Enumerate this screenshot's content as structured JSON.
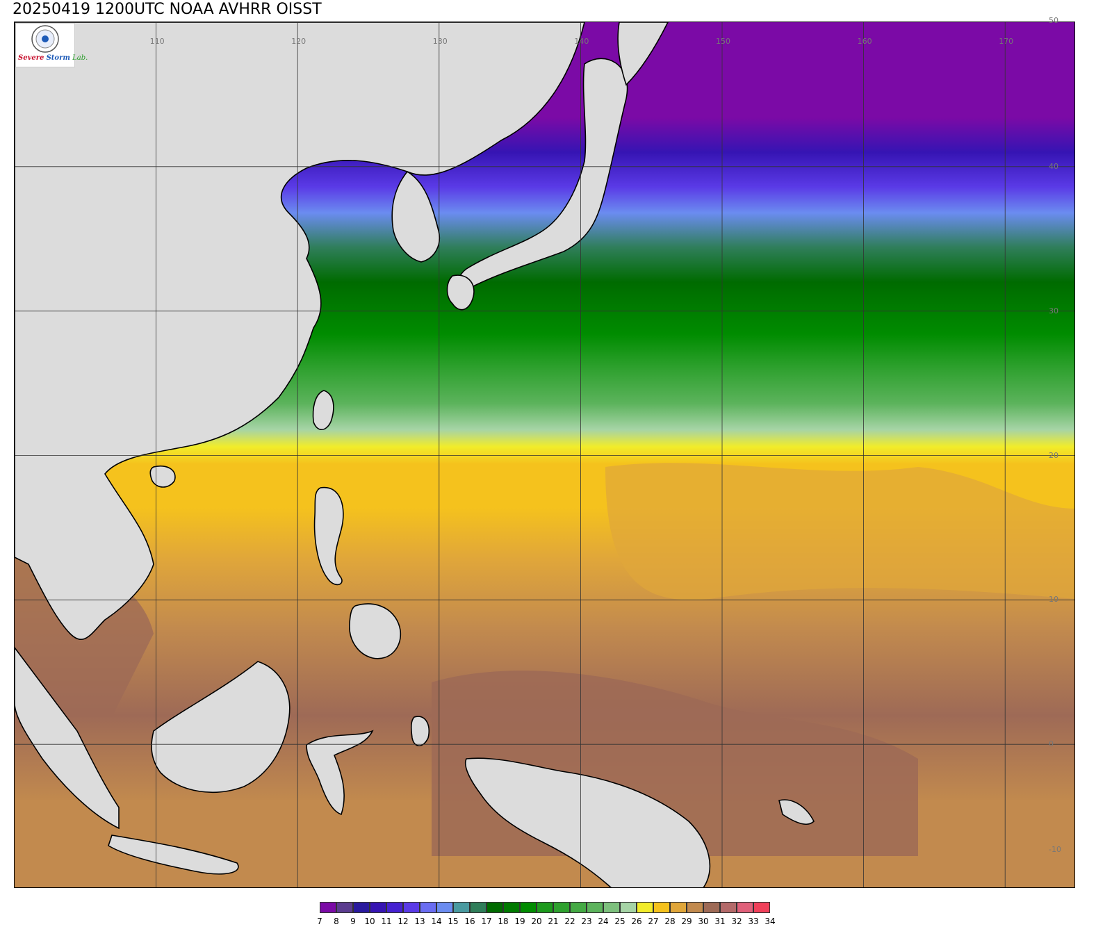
{
  "title": "20250419 1200UTC NOAA AVHRR OISST",
  "logo": {
    "part1": "Severe",
    "part2": "Storm",
    "part3": "Lab."
  },
  "map": {
    "projection": "equirectangular",
    "lon_range": [
      100,
      175
    ],
    "lat_range": [
      -10,
      50
    ],
    "lon_labels": [
      "110",
      "120",
      "130",
      "140",
      "150",
      "160",
      "170"
    ],
    "lat_labels": [
      "50",
      "40",
      "30",
      "20",
      "10",
      "0",
      "-10"
    ],
    "land_color": "#dcdcdc",
    "coastline_color": "#000000",
    "grid_color": "#333333"
  },
  "legend": {
    "labels": [
      "7",
      "8",
      "9",
      "10",
      "11",
      "12",
      "13",
      "14",
      "15",
      "16",
      "17",
      "18",
      "19",
      "20",
      "21",
      "22",
      "23",
      "24",
      "25",
      "26",
      "27",
      "28",
      "29",
      "30",
      "31",
      "32",
      "33",
      "34"
    ],
    "colors": [
      "#7b0aa6",
      "#5b3c8f",
      "#2a1a9e",
      "#3614b3",
      "#4521d1",
      "#5a3ae6",
      "#6a6df2",
      "#6b8cf0",
      "#4a9aa0",
      "#2f7e5a",
      "#006b00",
      "#007a00",
      "#008c00",
      "#1d9a1d",
      "#2fa12f",
      "#44aa44",
      "#5cb35c",
      "#7dc07d",
      "#a6d4a6",
      "#f2ec2a",
      "#f5c21d",
      "#e0a63a",
      "#c28a4e",
      "#9e6a56",
      "#b46a6a",
      "#e0607a",
      "#f0405a",
      "#d0202a"
    ]
  }
}
